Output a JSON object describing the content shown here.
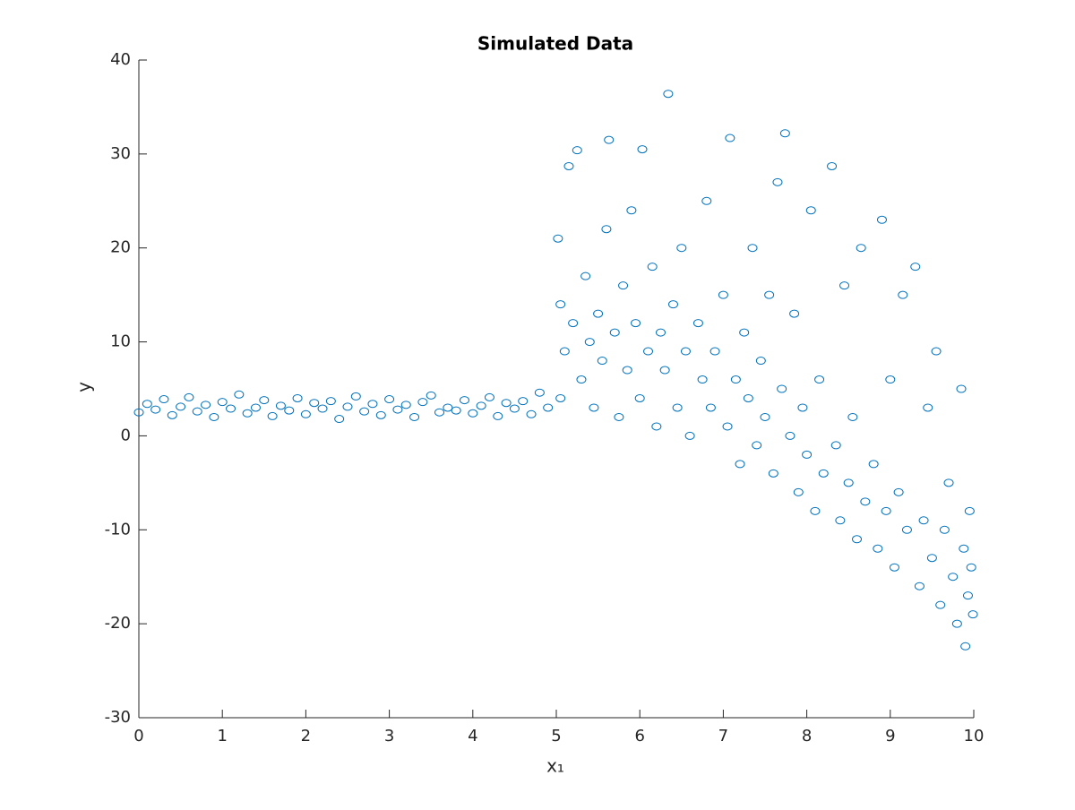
{
  "chart_data": {
    "type": "scatter",
    "title": "Simulated Data",
    "xlabel": "x₁",
    "ylabel": "y",
    "color": "#0072bd",
    "marker": "open-circle",
    "xlim": [
      0,
      10
    ],
    "ylim": [
      -30,
      40
    ],
    "xticks": [
      0,
      1,
      2,
      3,
      4,
      5,
      6,
      7,
      8,
      9,
      10
    ],
    "yticks": [
      -30,
      -20,
      -10,
      0,
      10,
      20,
      30,
      40
    ],
    "x": [
      0.0,
      0.1,
      0.2,
      0.3,
      0.4,
      0.5,
      0.6,
      0.7,
      0.8,
      0.9,
      1.0,
      1.1,
      1.2,
      1.3,
      1.4,
      1.5,
      1.6,
      1.7,
      1.8,
      1.9,
      2.0,
      2.1,
      2.2,
      2.3,
      2.4,
      2.5,
      2.6,
      2.7,
      2.8,
      2.9,
      3.0,
      3.1,
      3.2,
      3.3,
      3.4,
      3.5,
      3.6,
      3.7,
      3.8,
      3.9,
      4.0,
      4.1,
      4.2,
      4.3,
      4.4,
      4.5,
      4.6,
      4.7,
      4.8,
      4.9,
      5.02,
      5.05,
      5.05,
      5.1,
      5.15,
      5.2,
      5.25,
      5.3,
      5.35,
      5.4,
      5.45,
      5.5,
      5.55,
      5.6,
      5.63,
      5.7,
      5.75,
      5.8,
      5.85,
      5.9,
      5.95,
      6.0,
      6.03,
      6.1,
      6.15,
      6.2,
      6.25,
      6.3,
      6.34,
      6.4,
      6.45,
      6.5,
      6.55,
      6.6,
      6.7,
      6.75,
      6.8,
      6.85,
      6.9,
      7.0,
      7.05,
      7.08,
      7.15,
      7.2,
      7.25,
      7.3,
      7.35,
      7.4,
      7.45,
      7.5,
      7.55,
      7.6,
      7.65,
      7.7,
      7.74,
      7.8,
      7.85,
      7.9,
      7.95,
      8.0,
      8.05,
      8.1,
      8.15,
      8.2,
      8.3,
      8.35,
      8.4,
      8.45,
      8.5,
      8.55,
      8.6,
      8.65,
      8.7,
      8.8,
      8.85,
      8.9,
      8.95,
      9.0,
      9.05,
      9.1,
      9.15,
      9.2,
      9.3,
      9.35,
      9.4,
      9.45,
      9.5,
      9.55,
      9.6,
      9.65,
      9.7,
      9.75,
      9.8,
      9.85,
      9.88,
      9.9,
      9.93,
      9.95,
      9.97,
      9.99
    ],
    "y": [
      2.5,
      3.4,
      2.8,
      3.9,
      2.2,
      3.1,
      4.1,
      2.6,
      3.3,
      2.0,
      3.6,
      2.9,
      4.4,
      2.4,
      3.0,
      3.8,
      2.1,
      3.2,
      2.7,
      4.0,
      2.3,
      3.5,
      2.9,
      3.7,
      1.8,
      3.1,
      4.2,
      2.6,
      3.4,
      2.2,
      3.9,
      2.8,
      3.3,
      2.0,
      3.6,
      4.3,
      2.5,
      3.0,
      2.7,
      3.8,
      2.4,
      3.2,
      4.1,
      2.1,
      3.5,
      2.9,
      3.7,
      2.3,
      4.6,
      3.0,
      21,
      14,
      4,
      9,
      28.7,
      12,
      30.4,
      6,
      17,
      10,
      3,
      13,
      8,
      22,
      31.5,
      11,
      2,
      16,
      7,
      24,
      12,
      4,
      30.5,
      9,
      18,
      1,
      11,
      7,
      36.4,
      14,
      3,
      20,
      9,
      0,
      12,
      6,
      25,
      3,
      9,
      15,
      1,
      31.7,
      6,
      -3,
      11,
      4,
      20,
      -1,
      8,
      2,
      15,
      -4,
      27,
      5,
      32.2,
      0,
      13,
      -6,
      3,
      -2,
      24,
      -8,
      6,
      -4,
      28.7,
      -1,
      -9,
      16,
      -5,
      2,
      -11,
      20,
      -7,
      -3,
      -12,
      23,
      -8,
      6,
      -14,
      -6,
      15,
      -10,
      18,
      -16,
      -9,
      3,
      -13,
      9,
      -18,
      -10,
      -5,
      -15,
      -20,
      5,
      -12,
      -22.4,
      -17,
      -8,
      -14,
      -19
    ]
  }
}
